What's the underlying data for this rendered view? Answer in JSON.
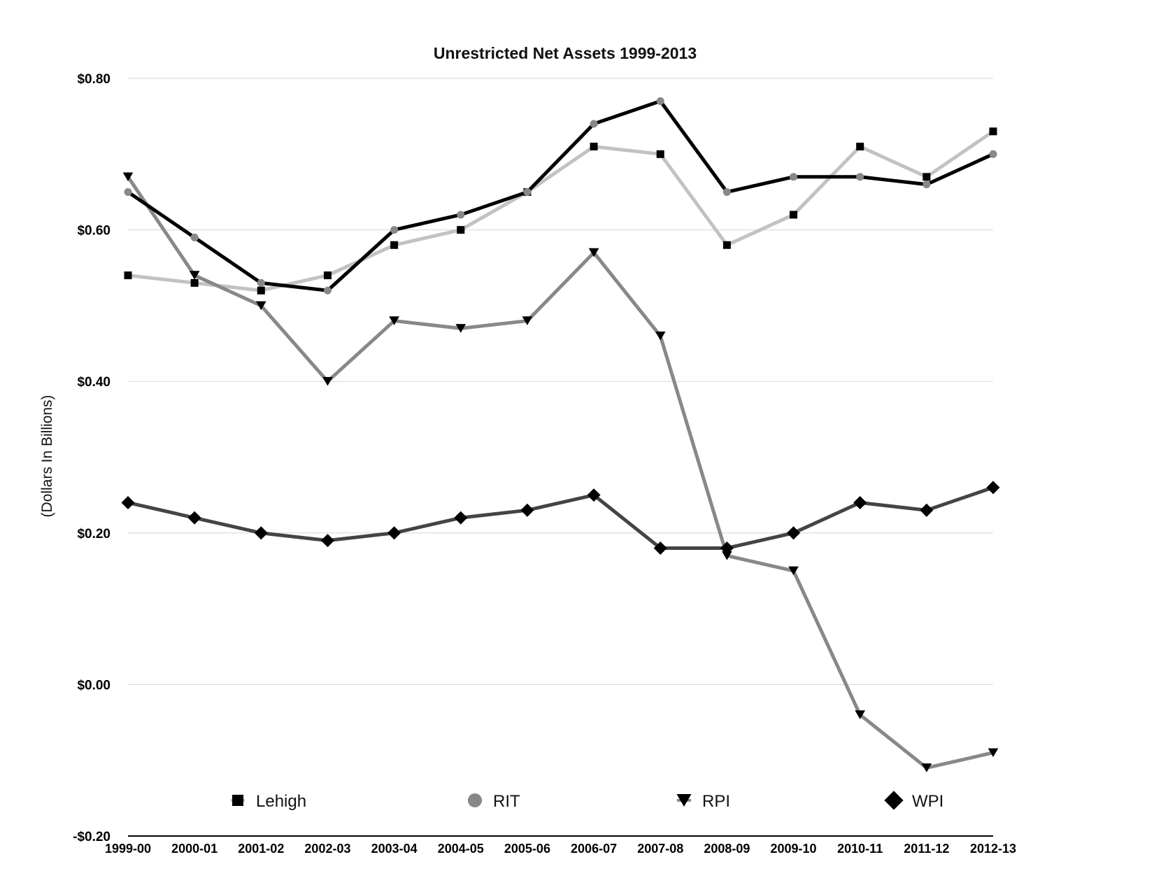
{
  "chart_data": {
    "type": "line",
    "title": "Unrestricted Net Assets 1999-2013",
    "xlabel": "",
    "ylabel": "(Dollars In Billions)",
    "ylim": [
      -0.2,
      0.8
    ],
    "yticks": [
      {
        "value": 0.8,
        "label": "$0.80"
      },
      {
        "value": 0.6,
        "label": "$0.60"
      },
      {
        "value": 0.4,
        "label": "$0.40"
      },
      {
        "value": 0.2,
        "label": "$0.20"
      },
      {
        "value": 0.0,
        "label": "$0.00"
      },
      {
        "value": -0.2,
        "label": "-$0.20"
      }
    ],
    "grid": true,
    "legend_position": "bottom",
    "categories": [
      "1999-00",
      "2000-01",
      "2001-02",
      "2002-03",
      "2003-04",
      "2004-05",
      "2005-06",
      "2006-07",
      "2007-08",
      "2008-09",
      "2009-10",
      "2010-11",
      "2011-12",
      "2012-13"
    ],
    "series": [
      {
        "name": "Lehigh",
        "color": "#c2c2c2",
        "marker": "square",
        "marker_color": "#000000",
        "values": [
          0.54,
          0.53,
          0.52,
          0.54,
          0.58,
          0.6,
          0.65,
          0.71,
          0.7,
          0.58,
          0.62,
          0.71,
          0.67,
          0.73
        ]
      },
      {
        "name": "RIT",
        "color": "#000000",
        "marker": "circle",
        "marker_color": "#888888",
        "values": [
          0.65,
          0.59,
          0.53,
          0.52,
          0.6,
          0.62,
          0.65,
          0.74,
          0.77,
          0.65,
          0.67,
          0.67,
          0.66,
          0.7
        ]
      },
      {
        "name": "RPI",
        "color": "#888888",
        "marker": "triangle-down",
        "marker_color": "#000000",
        "values": [
          0.67,
          0.54,
          0.5,
          0.4,
          0.48,
          0.47,
          0.48,
          0.57,
          0.46,
          0.17,
          0.15,
          -0.04,
          -0.11,
          -0.09
        ]
      },
      {
        "name": "WPI",
        "color": "#444444",
        "marker": "diamond",
        "marker_color": "#000000",
        "values": [
          0.24,
          0.22,
          0.2,
          0.19,
          0.2,
          0.22,
          0.23,
          0.25,
          0.18,
          0.18,
          0.2,
          0.24,
          0.23,
          0.26
        ]
      }
    ]
  }
}
